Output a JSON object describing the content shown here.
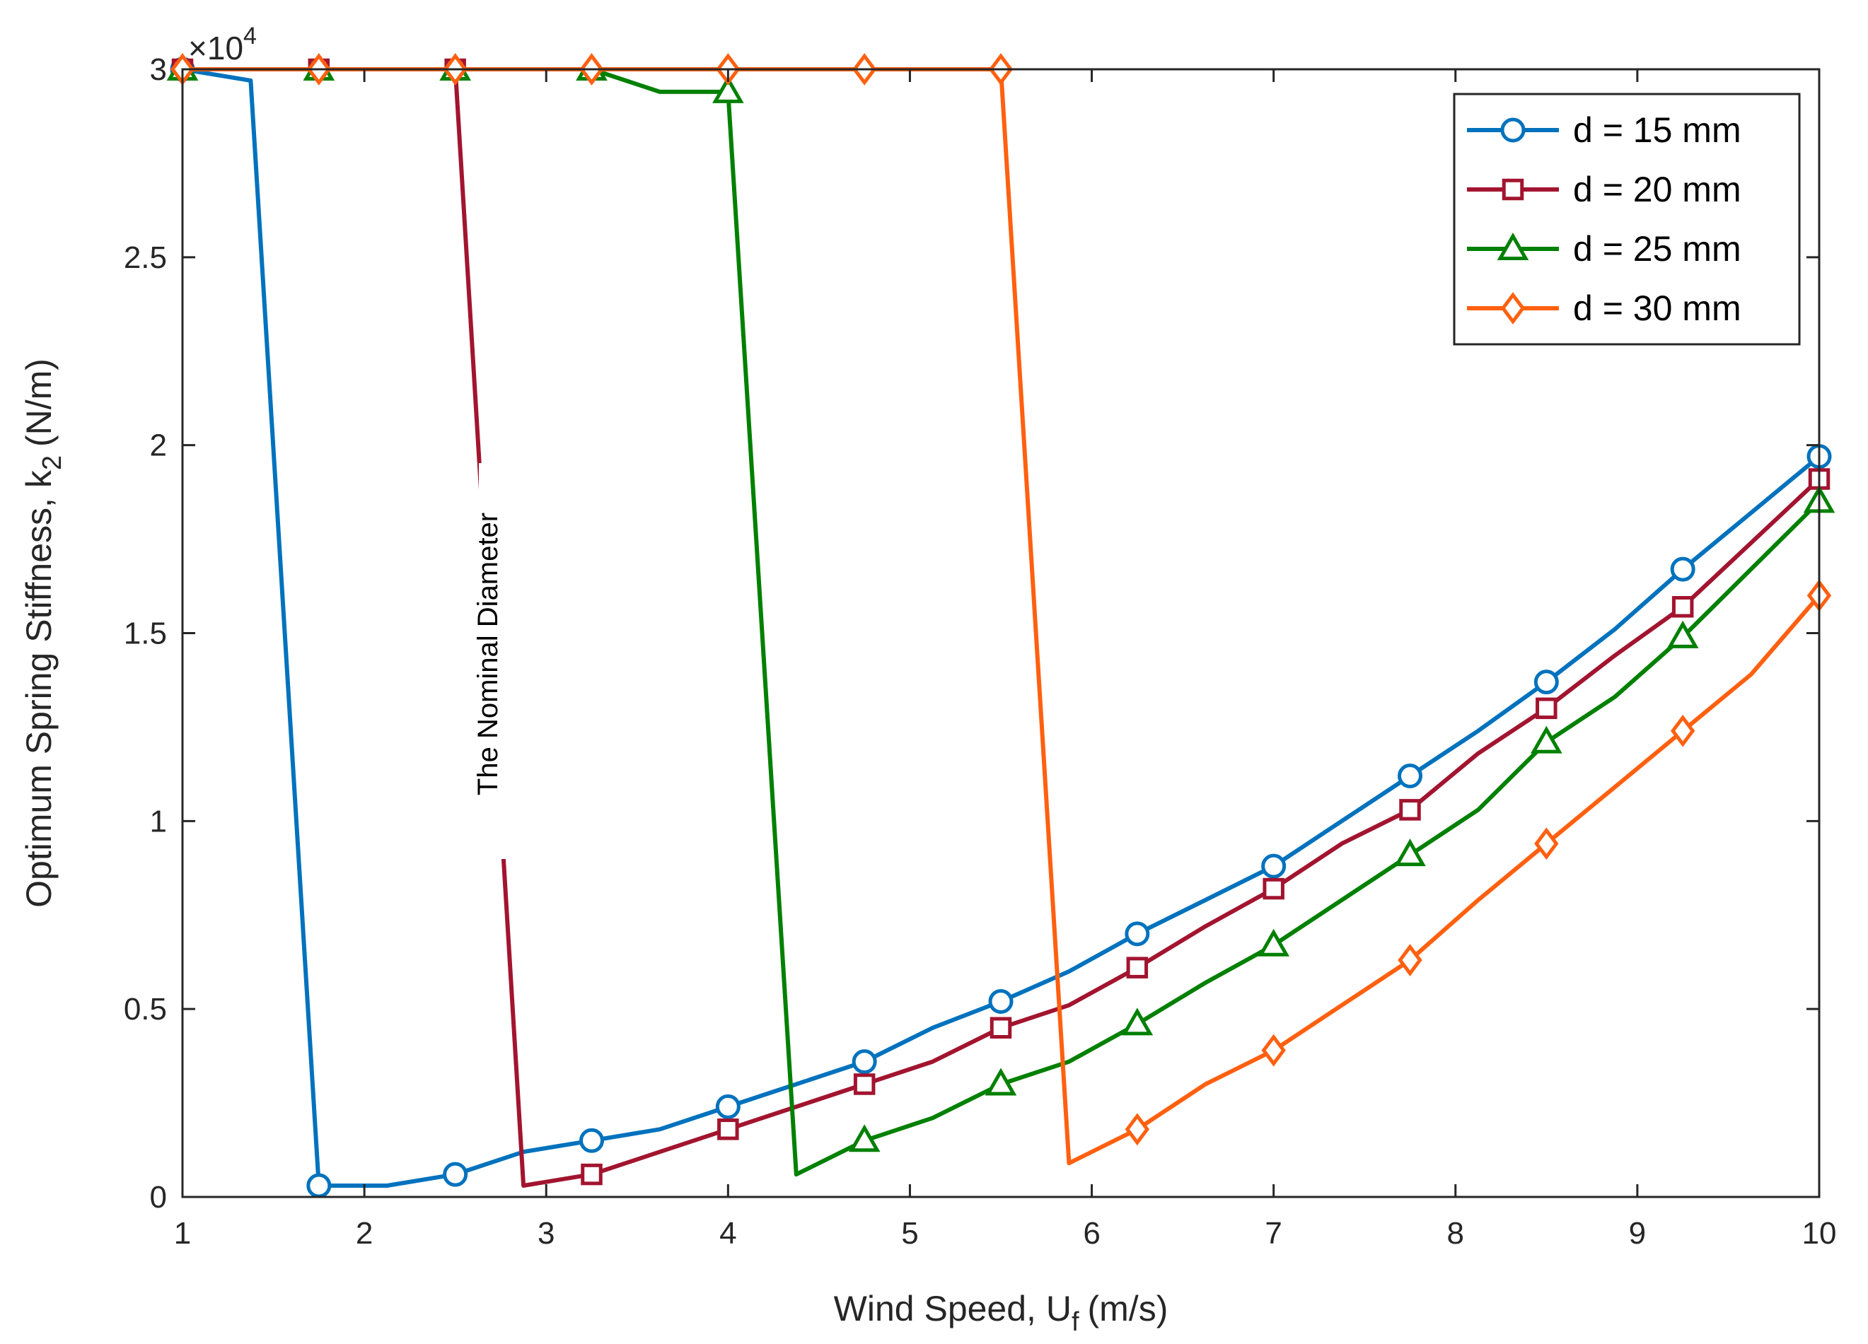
{
  "chart_data": {
    "type": "line",
    "xlabel": "Wind Speed, U",
    "xlabel_sub": "f",
    "xlabel_unit": "(m/s)",
    "ylabel": "Optimum Spring Stiffness, k",
    "ylabel_sub": "2",
    "ylabel_unit": "(N/m)",
    "y_multiplier_base": "×10",
    "y_multiplier_exp": "4",
    "xlim": [
      1,
      10
    ],
    "ylim": [
      0,
      3
    ],
    "xticks": [
      "1",
      "2",
      "3",
      "4",
      "5",
      "6",
      "7",
      "8",
      "9",
      "10"
    ],
    "yticks": [
      "0",
      "0.5",
      "1",
      "1.5",
      "2",
      "2.5",
      "3"
    ],
    "legend_position": "top-right",
    "annotation": "The Nominal Diameter",
    "series": [
      {
        "name": "d = 15 mm",
        "color": "#0072BD",
        "marker": "circle",
        "x": [
          1,
          1.375,
          1.75,
          2.125,
          2.5,
          2.875,
          3.25,
          3.625,
          4,
          4.375,
          4.75,
          5.125,
          5.5,
          5.875,
          6.25,
          6.625,
          7,
          7.375,
          7.75,
          8.125,
          8.5,
          8.875,
          9.25,
          9.625,
          10
        ],
        "y": [
          3.0,
          2.97,
          0.03,
          0.03,
          0.06,
          0.12,
          0.15,
          0.18,
          0.24,
          0.3,
          0.36,
          0.45,
          0.52,
          0.6,
          0.7,
          0.79,
          0.88,
          1.0,
          1.12,
          1.24,
          1.37,
          1.51,
          1.67,
          1.82,
          1.97
        ],
        "marker_every": 2
      },
      {
        "name": "d = 20 mm",
        "color": "#A2142F",
        "marker": "square",
        "x": [
          1,
          1.375,
          1.75,
          2.125,
          2.5,
          2.875,
          3.25,
          3.625,
          4,
          4.375,
          4.75,
          5.125,
          5.5,
          5.875,
          6.25,
          6.625,
          7,
          7.375,
          7.75,
          8.125,
          8.5,
          8.875,
          9.25,
          9.625,
          10
        ],
        "y": [
          3.0,
          3.0,
          3.0,
          3.0,
          3.0,
          0.03,
          0.06,
          0.12,
          0.18,
          0.24,
          0.3,
          0.36,
          0.45,
          0.51,
          0.61,
          0.72,
          0.82,
          0.94,
          1.03,
          1.18,
          1.3,
          1.44,
          1.57,
          1.74,
          1.91
        ],
        "marker_every": 2
      },
      {
        "name": "d = 25 mm",
        "color": "#008000",
        "marker": "triangle",
        "x": [
          1,
          1.375,
          1.75,
          2.125,
          2.5,
          2.875,
          3.25,
          3.625,
          4,
          4.375,
          4.75,
          5.125,
          5.5,
          5.875,
          6.25,
          6.625,
          7,
          7.375,
          7.75,
          8.125,
          8.5,
          8.875,
          9.25,
          9.625,
          10
        ],
        "y": [
          3.0,
          3.0,
          3.0,
          3.0,
          3.0,
          3.0,
          3.0,
          2.94,
          2.94,
          0.06,
          0.15,
          0.21,
          0.3,
          0.36,
          0.46,
          0.57,
          0.67,
          0.79,
          0.91,
          1.03,
          1.21,
          1.33,
          1.49,
          1.67,
          1.85
        ],
        "marker_every": 2
      },
      {
        "name": "d = 30 mm",
        "color": "#FF6010",
        "marker": "diamond",
        "x": [
          1,
          1.375,
          1.75,
          2.125,
          2.5,
          2.875,
          3.25,
          3.625,
          4,
          4.375,
          4.75,
          5.125,
          5.5,
          5.875,
          6.25,
          6.625,
          7,
          7.375,
          7.75,
          8.125,
          8.5,
          8.875,
          9.25,
          9.625,
          10
        ],
        "y": [
          3.0,
          3.0,
          3.0,
          3.0,
          3.0,
          3.0,
          3.0,
          3.0,
          3.0,
          3.0,
          3.0,
          3.0,
          3.0,
          0.09,
          0.18,
          0.3,
          0.39,
          0.51,
          0.63,
          0.79,
          0.94,
          1.09,
          1.24,
          1.39,
          1.6
        ],
        "marker_every": 2
      }
    ]
  }
}
